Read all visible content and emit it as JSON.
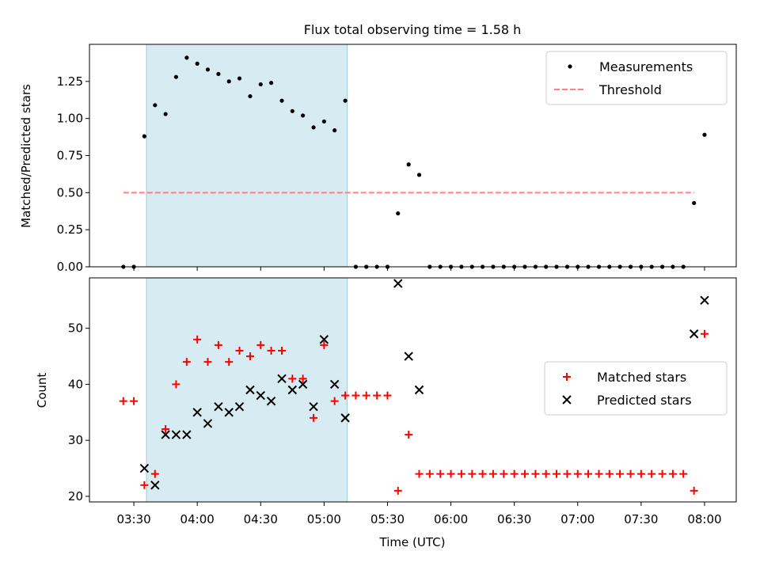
{
  "title": "Flux total observing time = 1.58 h",
  "chart_data": [
    {
      "type": "scatter",
      "ylabel": "Matched/Predicted stars",
      "xlabel": "",
      "ylim": [
        0,
        1.5
      ],
      "yticks": [
        0,
        0.25,
        0.5,
        0.75,
        1.0,
        1.25
      ],
      "ytick_labels": [
        "0.00",
        "0.25",
        "0.50",
        "0.75",
        "1.00",
        "1.25"
      ],
      "legend_position": "top-right",
      "shaded_span": [
        3.6,
        5.183
      ],
      "series": [
        {
          "name": "Measurements",
          "marker": "dot",
          "color": "#000000",
          "x": [
            3.417,
            3.5,
            3.583,
            3.667,
            3.75,
            3.833,
            3.917,
            4.0,
            4.083,
            4.167,
            4.25,
            4.333,
            4.417,
            4.5,
            4.583,
            4.667,
            4.75,
            4.833,
            4.917,
            5.0,
            5.083,
            5.167,
            5.25,
            5.333,
            5.417,
            5.5,
            5.583,
            5.667,
            5.75,
            5.833,
            5.917,
            6.0,
            6.083,
            6.167,
            6.25,
            6.333,
            6.417,
            6.5,
            6.583,
            6.667,
            6.75,
            6.833,
            6.917,
            7.0,
            7.083,
            7.167,
            7.25,
            7.333,
            7.417,
            7.5,
            7.583,
            7.667,
            7.75,
            7.833,
            7.917,
            8.0
          ],
          "y": [
            0.0,
            0.0,
            0.88,
            1.09,
            1.03,
            1.28,
            1.41,
            1.37,
            1.33,
            1.3,
            1.25,
            1.27,
            1.15,
            1.23,
            1.24,
            1.12,
            1.05,
            1.02,
            0.94,
            0.98,
            0.92,
            1.12,
            0.0,
            0.0,
            0.0,
            0.0,
            0.36,
            0.69,
            0.62,
            0.0,
            0.0,
            0.0,
            0.0,
            0.0,
            0.0,
            0.0,
            0.0,
            0.0,
            0.0,
            0.0,
            0.0,
            0.0,
            0.0,
            0.0,
            0.0,
            0.0,
            0.0,
            0.0,
            0.0,
            0.0,
            0.0,
            0.0,
            0.0,
            0.0,
            0.43,
            0.89
          ]
        },
        {
          "name": "Threshold",
          "line": "dashed",
          "color": "#ff8080",
          "x": [
            3.417,
            7.917
          ],
          "y": [
            0.5,
            0.5
          ]
        }
      ]
    },
    {
      "type": "scatter",
      "ylabel": "Count",
      "xlabel": "Time (UTC)",
      "ylim": [
        19,
        59
      ],
      "yticks": [
        20,
        30,
        40,
        50
      ],
      "ytick_labels": [
        "20",
        "30",
        "40",
        "50"
      ],
      "xlim": [
        3.15,
        8.25
      ],
      "xticks": [
        3.5,
        4.0,
        4.5,
        5.0,
        5.5,
        6.0,
        6.5,
        7.0,
        7.5,
        8.0
      ],
      "xtick_labels": [
        "03:30",
        "04:00",
        "04:30",
        "05:00",
        "05:30",
        "06:00",
        "06:30",
        "07:00",
        "07:30",
        "08:00"
      ],
      "legend_position": "center-right",
      "shaded_span": [
        3.6,
        5.183
      ],
      "series": [
        {
          "name": "Matched stars",
          "marker": "plus",
          "color": "#ff0000",
          "x": [
            3.417,
            3.5,
            3.583,
            3.667,
            3.75,
            3.833,
            3.917,
            4.0,
            4.083,
            4.167,
            4.25,
            4.333,
            4.417,
            4.5,
            4.583,
            4.667,
            4.75,
            4.833,
            4.917,
            5.0,
            5.083,
            5.167,
            5.25,
            5.333,
            5.417,
            5.5,
            5.583,
            5.667,
            5.75,
            5.833,
            5.917,
            6.0,
            6.083,
            6.167,
            6.25,
            6.333,
            6.417,
            6.5,
            6.583,
            6.667,
            6.75,
            6.833,
            6.917,
            7.0,
            7.083,
            7.167,
            7.25,
            7.333,
            7.417,
            7.5,
            7.583,
            7.667,
            7.75,
            7.833,
            7.917,
            8.0
          ],
          "y": [
            37,
            37,
            22,
            24,
            32,
            40,
            44,
            48,
            44,
            47,
            44,
            46,
            45,
            47,
            46,
            46,
            41,
            41,
            34,
            47,
            37,
            38,
            38,
            38,
            38,
            38,
            21,
            31,
            24,
            24,
            24,
            24,
            24,
            24,
            24,
            24,
            24,
            24,
            24,
            24,
            24,
            24,
            24,
            24,
            24,
            24,
            24,
            24,
            24,
            24,
            24,
            24,
            24,
            24,
            21,
            49
          ]
        },
        {
          "name": "Predicted stars",
          "marker": "x",
          "color": "#000000",
          "x": [
            3.583,
            3.667,
            3.75,
            3.833,
            3.917,
            4.0,
            4.083,
            4.167,
            4.25,
            4.333,
            4.417,
            4.5,
            4.583,
            4.667,
            4.75,
            4.833,
            4.917,
            5.0,
            5.083,
            5.167,
            5.583,
            5.667,
            5.75,
            7.917,
            8.0
          ],
          "y": [
            25,
            22,
            31,
            31,
            31,
            35,
            33,
            36,
            35,
            36,
            39,
            38,
            37,
            41,
            39,
            40,
            36,
            48,
            40,
            34,
            58,
            45,
            39,
            49,
            55
          ]
        }
      ]
    }
  ]
}
